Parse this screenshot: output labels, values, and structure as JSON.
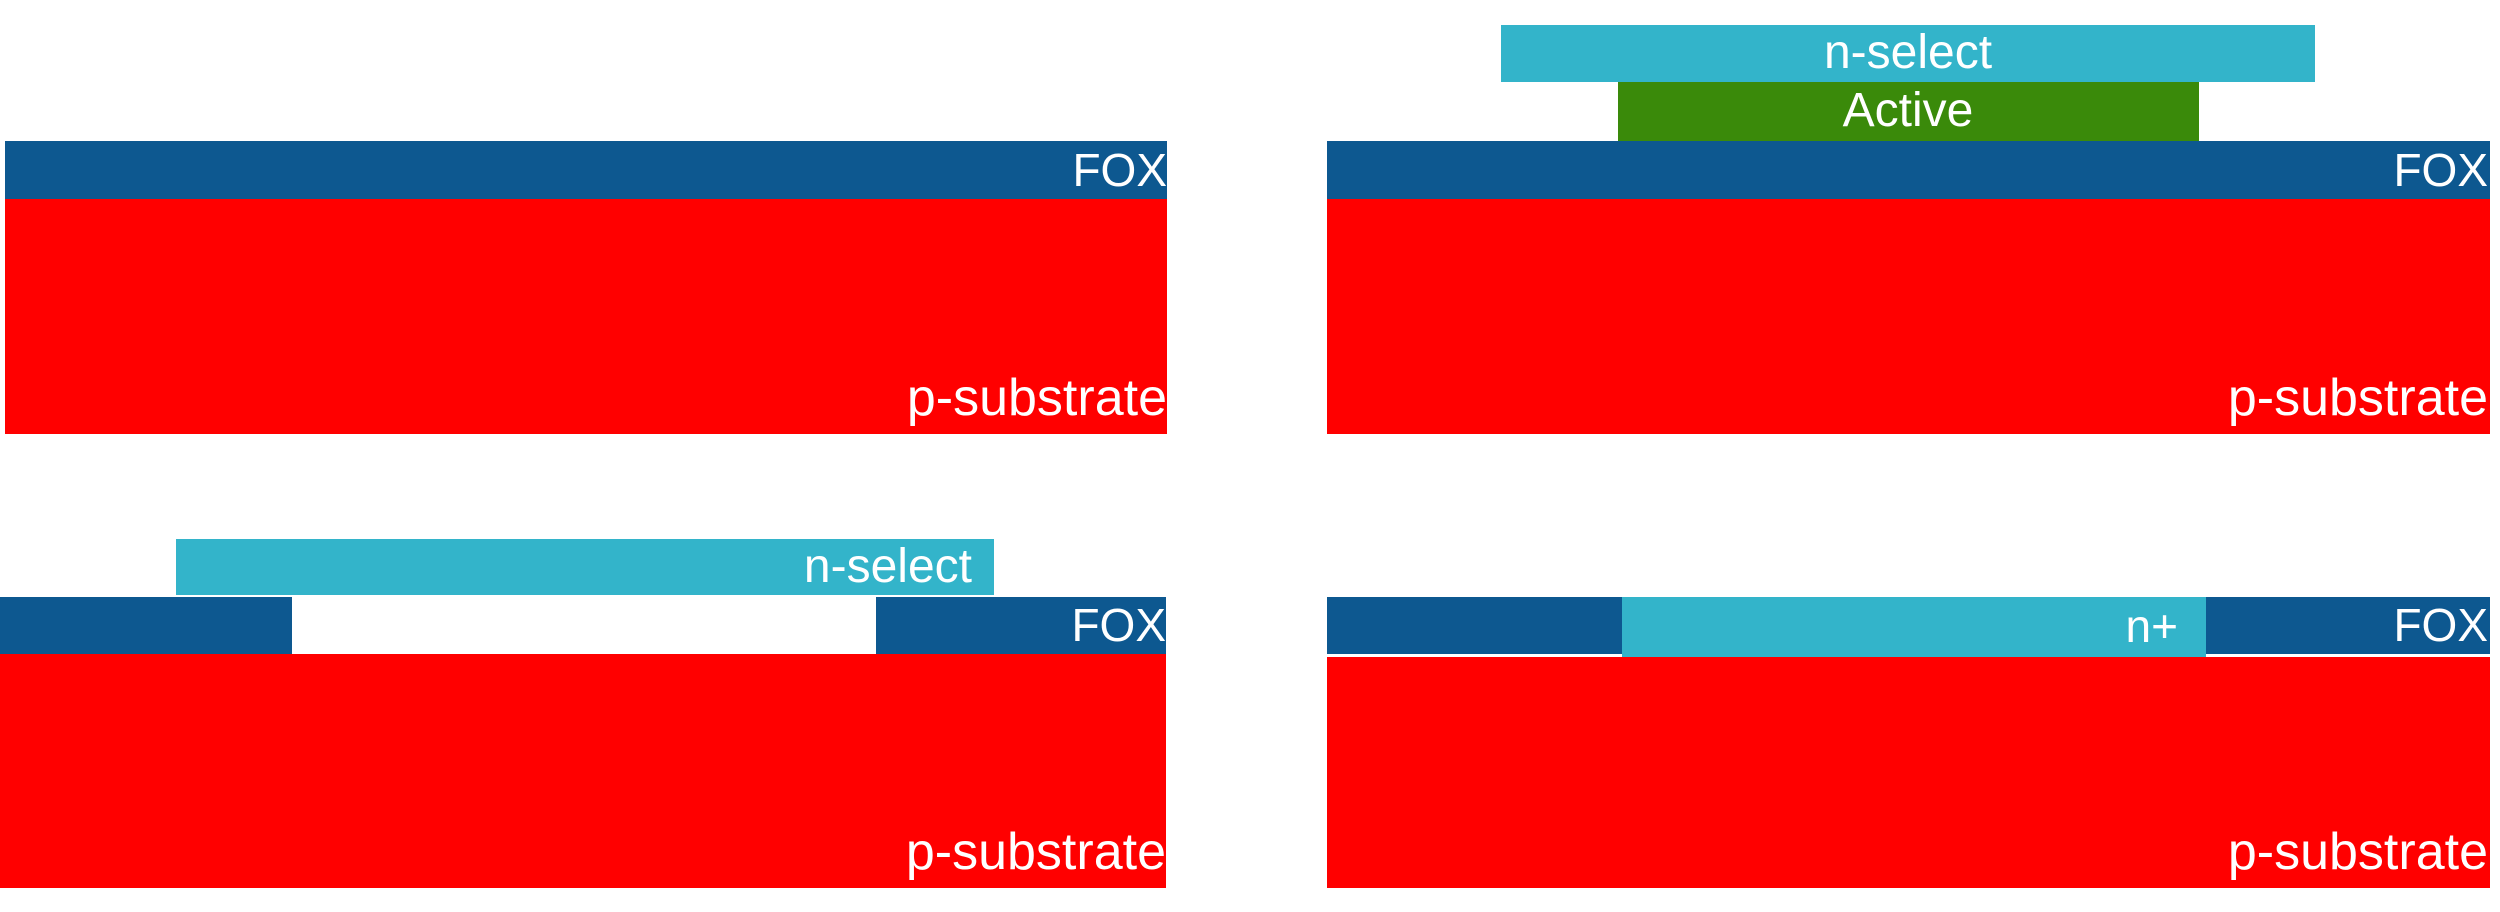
{
  "labels": {
    "fox": "FOX",
    "substrate": "p-substrate",
    "nselect": "n-select",
    "active": "Active",
    "nplus": "n+"
  },
  "colors": {
    "fox": "#0d5890",
    "substrate": "#ff0000",
    "nselect": "#33b4ca",
    "active": "#3a8a0a",
    "nplus": "#33b4ca",
    "text": "#ffffff"
  }
}
